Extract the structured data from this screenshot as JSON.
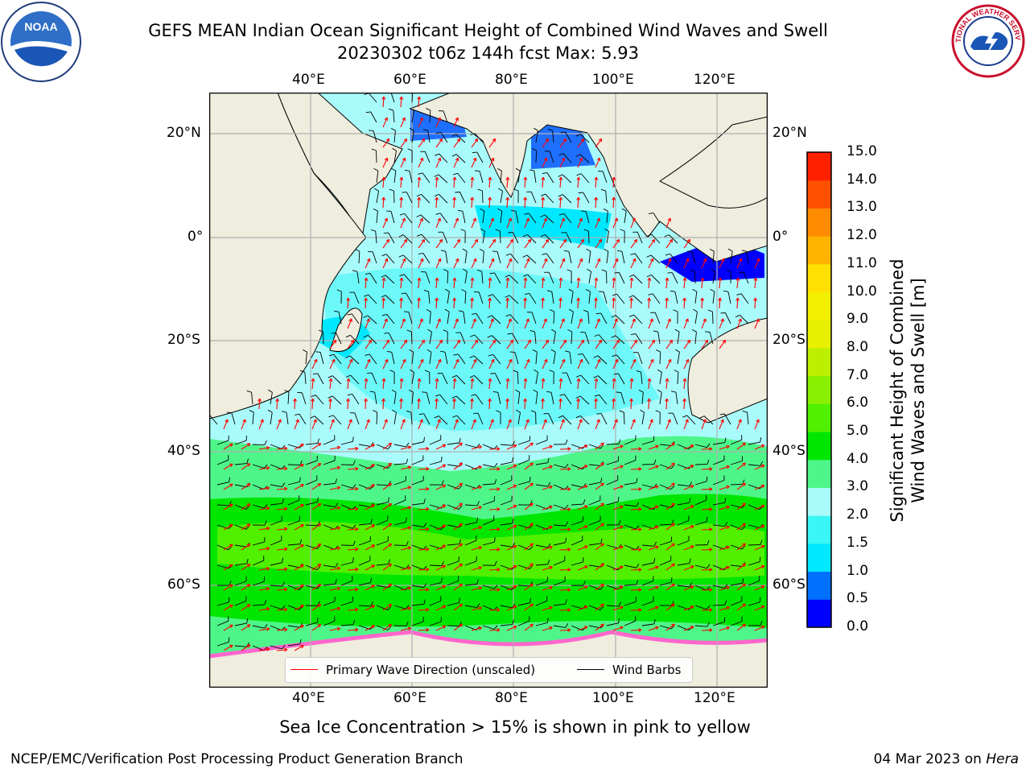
{
  "title": {
    "line1": "GEFS MEAN Indian Ocean Significant Height of Combined Wind Waves and Swell",
    "line2": "20230302 t06z 144h fcst   Max: 5.93"
  },
  "logos": {
    "left": "NOAA",
    "right": "NATIONAL WEATHER SERVICE"
  },
  "map": {
    "lon_ticks": [
      "40°E",
      "60°E",
      "80°E",
      "100°E",
      "120°E"
    ],
    "lat_ticks_left": [
      "20°N",
      "0°",
      "20°S",
      "40°S",
      "60°S"
    ],
    "lat_ticks_right": [
      "20°N",
      "0°",
      "20°S",
      "40°S",
      "60°S"
    ],
    "land_color": "#eeedde",
    "wave_arrow_color": "#ff0000",
    "wind_barb_color": "#000000",
    "grid": true
  },
  "legend": {
    "wave": "Primary Wave Direction (unscaled)",
    "wind": "Wind Barbs"
  },
  "colorbar": {
    "label_line1": "Significant Height of Combined",
    "label_line2": "Wind Waves and Swell [m]",
    "ticks": [
      "15.0",
      "14.0",
      "13.0",
      "12.0",
      "11.0",
      "10.0",
      "9.0",
      "8.0",
      "7.0",
      "6.0",
      "5.0",
      "4.0",
      "3.0",
      "2.0",
      "1.5",
      "1.0",
      "0.5",
      "0.0"
    ],
    "colors": [
      "#0000ff",
      "#0070ff",
      "#00e8ff",
      "#3af6f6",
      "#a9fbfb",
      "#4ef68a",
      "#00e600",
      "#50f000",
      "#88f000",
      "#bdf000",
      "#e6f000",
      "#f0f000",
      "#ffe000",
      "#ffb400",
      "#ff8c00",
      "#ff5000",
      "#ff2000"
    ]
  },
  "caption": "Sea Ice Concentration > 15% is shown in pink to yellow",
  "footer": {
    "left": "NCEP/EMC/Verification Post Processing Product Generation Branch",
    "right_prefix": "04 Mar 2023 on ",
    "right_host": "Hera"
  }
}
